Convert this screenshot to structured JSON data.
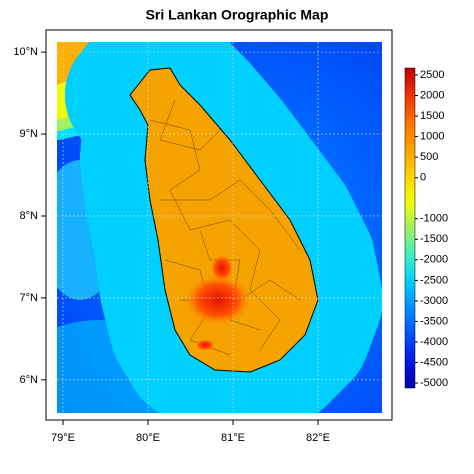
{
  "chart_data": {
    "type": "map",
    "title": "Sri Lankan Orographic Map",
    "xlim": [
      78.8,
      82.87
    ],
    "ylim": [
      5.51,
      10.27
    ],
    "xticks": [
      {
        "value": 79,
        "label": "79°E"
      },
      {
        "value": 80,
        "label": "80°E"
      },
      {
        "value": 81,
        "label": "81°E"
      },
      {
        "value": 82,
        "label": "82°E"
      }
    ],
    "yticks": [
      {
        "value": 6,
        "label": "6°N"
      },
      {
        "value": 7,
        "label": "7°N"
      },
      {
        "value": 8,
        "label": "8°N"
      },
      {
        "value": 9,
        "label": "9°N"
      },
      {
        "value": 10,
        "label": "10°N"
      }
    ],
    "grid": true,
    "colorbar": {
      "lim": [
        -5120,
        2670
      ],
      "ticks": [
        2500,
        2000,
        1500,
        1000,
        500,
        0,
        -1000,
        -1500,
        -2000,
        -2500,
        -3000,
        -3500,
        -4000,
        -4500,
        -5000
      ],
      "colors": [
        "#0000a8",
        "#0018e8",
        "#0050ff",
        "#0090ff",
        "#00d0ff",
        "#40f0c0",
        "#a0f060",
        "#f0ff00",
        "#ffd000",
        "#ffa000",
        "#ff7000",
        "#f03000",
        "#c00000"
      ]
    }
  }
}
